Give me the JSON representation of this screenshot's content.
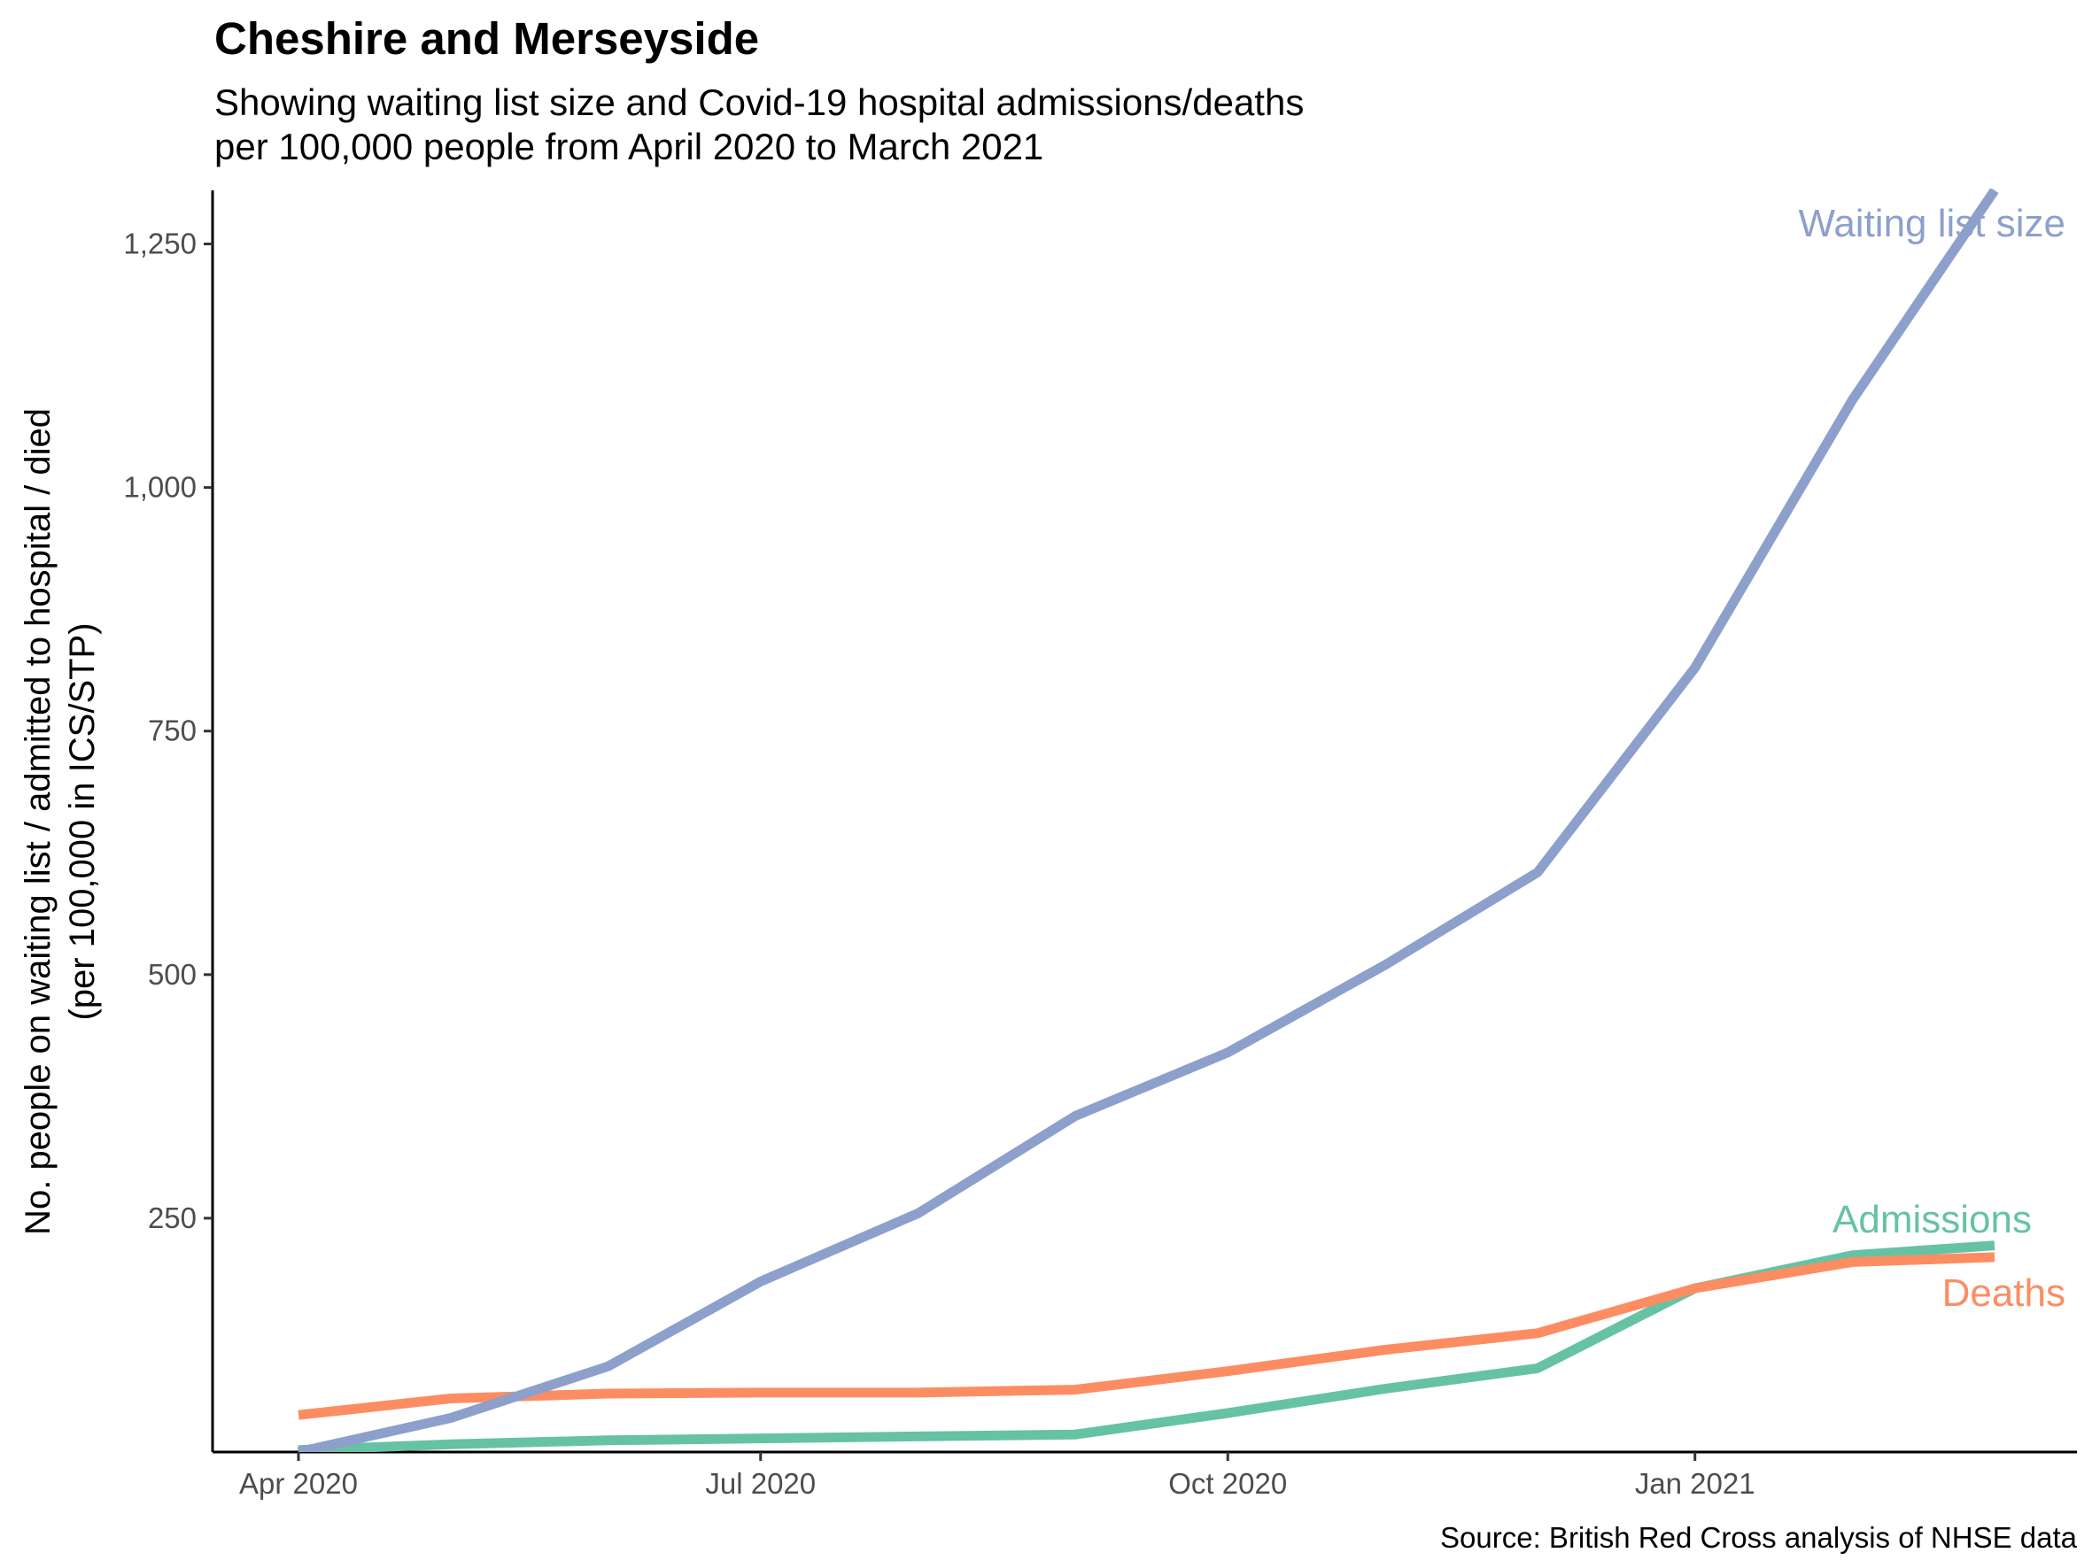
{
  "chart_data": {
    "type": "line",
    "title": "Cheshire and Merseyside",
    "subtitle_lines": [
      "Showing waiting list size and Covid-19 hospital admissions/deaths",
      "per 100,000 people from April 2020 to March 2021"
    ],
    "ylabel_lines": [
      "No. people on waiting list / admitted to hospital / died",
      "(per 100,000 in ICS/STP)"
    ],
    "xlabel": "",
    "caption": "Source: British Red Cross analysis of NHSE data",
    "x": [
      "2020-04-01",
      "2020-05-01",
      "2020-06-01",
      "2020-07-01",
      "2020-08-01",
      "2020-09-01",
      "2020-10-01",
      "2020-11-01",
      "2020-12-01",
      "2021-01-01",
      "2021-02-01",
      "2021-03-01"
    ],
    "x_ticks": [
      {
        "date": "2020-04-01",
        "label": "Apr 2020"
      },
      {
        "date": "2020-07-01",
        "label": "Jul 2020"
      },
      {
        "date": "2020-10-01",
        "label": "Oct 2020"
      },
      {
        "date": "2021-01-01",
        "label": "Jan 2021"
      }
    ],
    "y_ticks": [
      {
        "value": 250,
        "label": "250"
      },
      {
        "value": 500,
        "label": "500"
      },
      {
        "value": 750,
        "label": "750"
      },
      {
        "value": 1000,
        "label": "1,000"
      },
      {
        "value": 1250,
        "label": "1,250"
      }
    ],
    "ylim": [
      10,
      1305
    ],
    "grid": false,
    "legend": "none (direct labels at line ends)",
    "series": [
      {
        "name": "Waiting list size",
        "color": "#8da0cb",
        "values": [
          10,
          45,
          98,
          185,
          255,
          355,
          420,
          510,
          605,
          815,
          1090,
          1305
        ]
      },
      {
        "name": "Admissions",
        "color": "#66c2a5",
        "values": [
          12,
          18,
          22,
          24,
          26,
          28,
          50,
          75,
          96,
          178,
          212,
          222
        ]
      },
      {
        "name": "Deaths",
        "color": "#fc8d62",
        "values": [
          48,
          65,
          70,
          71,
          71,
          74,
          93,
          115,
          132,
          178,
          205,
          210
        ]
      }
    ]
  }
}
